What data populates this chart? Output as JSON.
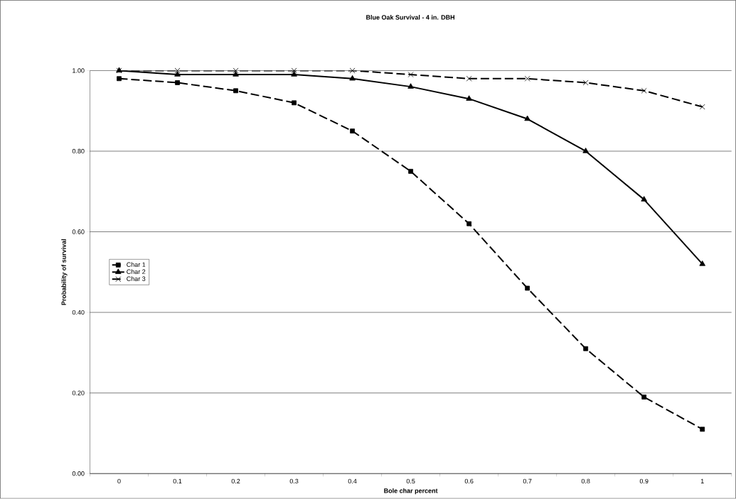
{
  "chart_data": {
    "type": "line",
    "title": "Blue Oak Survival - 4 in. DBH",
    "xlabel": "Bole char percent",
    "ylabel": "Probability of survival",
    "categories": [
      "0",
      "0.1",
      "0.2",
      "0.3",
      "0.4",
      "0.5",
      "0.6",
      "0.7",
      "0.8",
      "0.9",
      "1"
    ],
    "series": [
      {
        "name": "Char 1",
        "color": "#000000",
        "marker": "square",
        "line_style": "dashed",
        "values": [
          0.98,
          0.97,
          0.95,
          0.92,
          0.85,
          0.75,
          0.62,
          0.46,
          0.31,
          0.19,
          0.11
        ]
      },
      {
        "name": "Char 2",
        "color": "#000000",
        "marker": "triangle",
        "line_style": "solid",
        "values": [
          1.0,
          0.99,
          0.99,
          0.99,
          0.98,
          0.96,
          0.93,
          0.88,
          0.8,
          0.68,
          0.52
        ]
      },
      {
        "name": "Char 3",
        "color": "#000000",
        "marker": "cross",
        "line_style": "dashed",
        "values": [
          1.0,
          1.0,
          1.0,
          1.0,
          1.0,
          0.99,
          0.98,
          0.98,
          0.97,
          0.95,
          0.91
        ]
      }
    ],
    "ylim": [
      0,
      1
    ],
    "yticks": [
      {
        "value": 0,
        "label": "0.00"
      },
      {
        "value": 0.2,
        "label": "0.20"
      },
      {
        "value": 0.4,
        "label": "0.40"
      },
      {
        "value": 0.6,
        "label": "0.60"
      },
      {
        "value": 0.8,
        "label": "0.80"
      },
      {
        "value": 1,
        "label": "1.00"
      }
    ],
    "grid": "y",
    "legend": "left"
  }
}
